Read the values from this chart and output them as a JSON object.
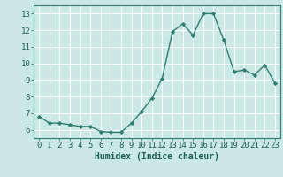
{
  "x": [
    0,
    1,
    2,
    3,
    4,
    5,
    6,
    7,
    8,
    9,
    10,
    11,
    12,
    13,
    14,
    15,
    16,
    17,
    18,
    19,
    20,
    21,
    22,
    23
  ],
  "y": [
    6.8,
    6.4,
    6.4,
    6.3,
    6.2,
    6.2,
    5.9,
    5.85,
    5.85,
    6.4,
    7.1,
    7.9,
    9.1,
    11.9,
    12.4,
    11.7,
    13.0,
    13.0,
    11.4,
    9.5,
    9.6,
    9.3,
    9.9,
    8.8
  ],
  "line_color": "#2e7d6e",
  "marker": "D",
  "marker_size": 2.2,
  "line_width": 1.0,
  "xlabel": "Humidex (Indice chaleur)",
  "xlim": [
    -0.5,
    23.5
  ],
  "ylim": [
    5.5,
    13.5
  ],
  "yticks": [
    6,
    7,
    8,
    9,
    10,
    11,
    12,
    13
  ],
  "xticks": [
    0,
    1,
    2,
    3,
    4,
    5,
    6,
    7,
    8,
    9,
    10,
    11,
    12,
    13,
    14,
    15,
    16,
    17,
    18,
    19,
    20,
    21,
    22,
    23
  ],
  "xtick_labels": [
    "0",
    "1",
    "2",
    "3",
    "4",
    "5",
    "6",
    "7",
    "8",
    "9",
    "10",
    "11",
    "12",
    "13",
    "14",
    "15",
    "16",
    "17",
    "18",
    "19",
    "20",
    "21",
    "22",
    "23"
  ],
  "bg_color": "#cce8e4",
  "grid_color": "#b0d8d4",
  "line_border_color": "#2e7d6e",
  "label_color": "#1a5c50",
  "xlabel_fontsize": 7,
  "tick_fontsize": 6.5
}
